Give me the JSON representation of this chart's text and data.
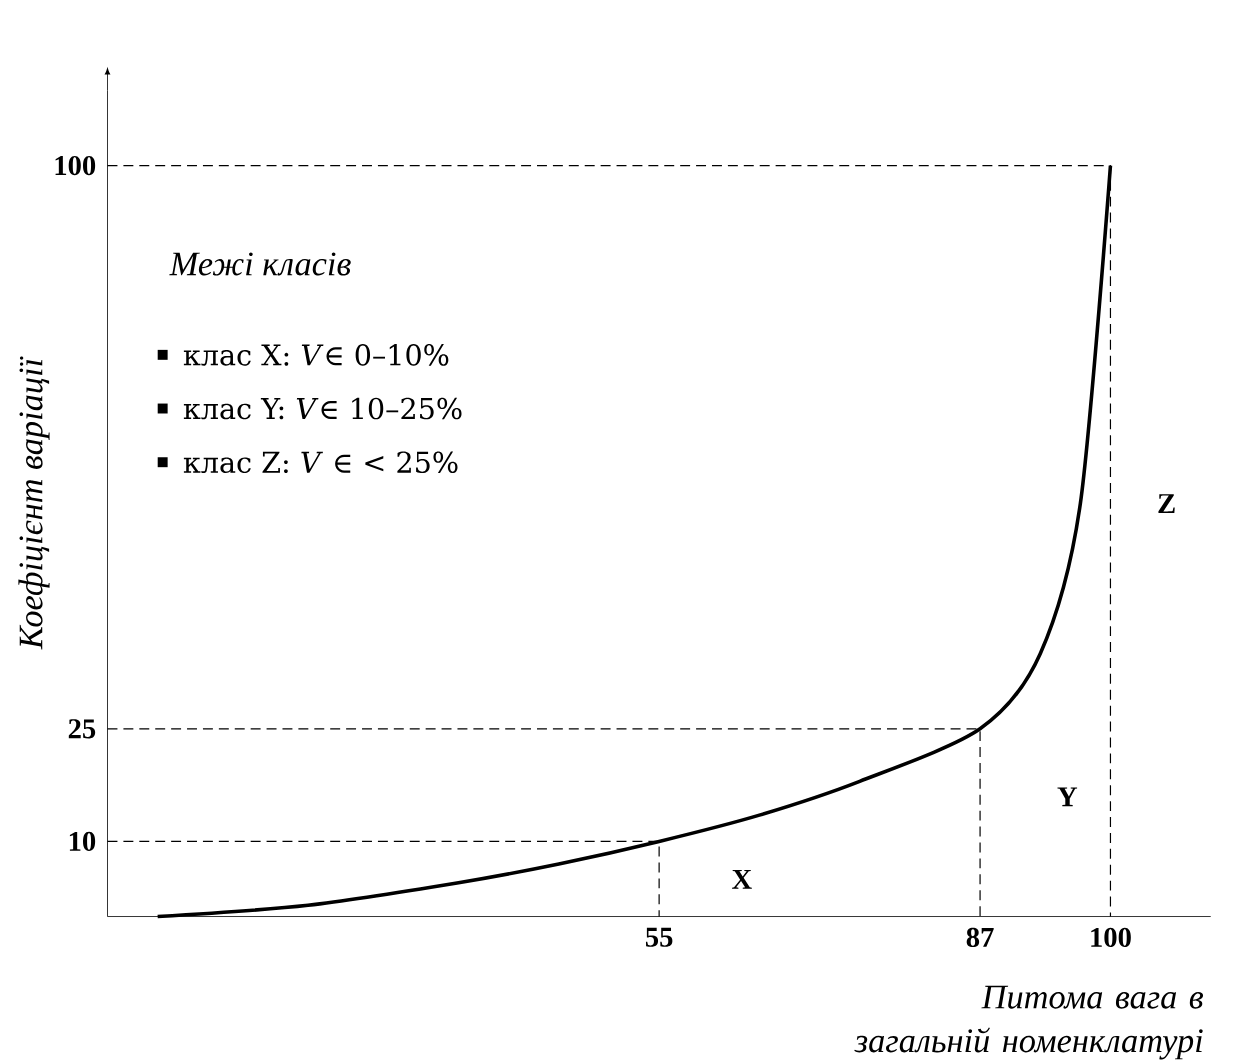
{
  "chart_data": {
    "type": "line",
    "xlabel": "Питома вага в загальній номенклатурі",
    "ylabel": "Коефіцієнт варіації",
    "xlim": [
      0,
      110
    ],
    "ylim": [
      0,
      110
    ],
    "xticks": [
      55,
      87,
      100
    ],
    "yticks": [
      10,
      25,
      100
    ],
    "grid": false,
    "series": [
      {
        "x": [
          5,
          20,
          35,
          45,
          55,
          65,
          75,
          87,
          93,
          97,
          100
        ],
        "values": [
          0,
          1.5,
          4.5,
          7,
          10,
          13.5,
          18,
          25,
          35,
          55,
          100
        ],
        "color": "#000000"
      },
      {
        "type": "line",
        "line_style": "dashed",
        "x": [
          0,
          55,
          55
        ],
        "values": [
          10,
          10,
          0
        ],
        "color": "#000000"
      },
      {
        "type": "line",
        "line_style": "dashed",
        "x": [
          0,
          87,
          87
        ],
        "values": [
          25,
          25,
          0
        ],
        "color": "#000000"
      },
      {
        "type": "line",
        "line_style": "dashed",
        "x": [
          0,
          100,
          100
        ],
        "values": [
          100,
          100,
          0
        ],
        "color": "#000000"
      }
    ],
    "annotations": [
      "Межі класів",
      "клас X: *V*∈ 0–10%",
      "клас Y: *V*∈ 10–25%",
      "клас Z: *V* ∈ < 25%",
      "X",
      "Y",
      "Z"
    ]
  }
}
